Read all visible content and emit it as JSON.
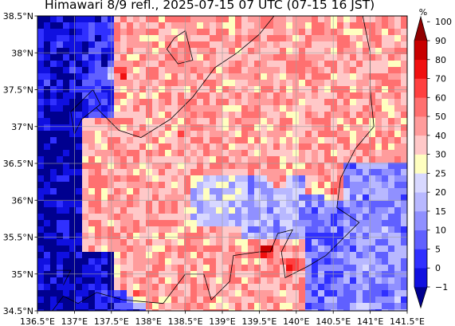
{
  "title": "Himawari 8/9 refl., 2025-07-15 07 UTC (07-15 16 JST)",
  "lon_ticks": [
    {
      "value": 136.5,
      "label": "136.5°E"
    },
    {
      "value": 137.0,
      "label": "137°E"
    },
    {
      "value": 137.5,
      "label": "137.5°E"
    },
    {
      "value": 138.0,
      "label": "138°E"
    },
    {
      "value": 138.5,
      "label": "138.5°E"
    },
    {
      "value": 139.0,
      "label": "139°E"
    },
    {
      "value": 139.5,
      "label": "139.5°E"
    },
    {
      "value": 140.0,
      "label": "140°E"
    },
    {
      "value": 140.5,
      "label": "140.5°E"
    },
    {
      "value": 141.0,
      "label": "141°E"
    },
    {
      "value": 141.5,
      "label": "141.5°E"
    }
  ],
  "lat_ticks": [
    {
      "value": 38.5,
      "label": "38.5°N"
    },
    {
      "value": 38.0,
      "label": "38°N"
    },
    {
      "value": 37.5,
      "label": "37.5°N"
    },
    {
      "value": 37.0,
      "label": "37°N"
    },
    {
      "value": 36.5,
      "label": "36.5°N"
    },
    {
      "value": 36.0,
      "label": "36°N"
    },
    {
      "value": 35.5,
      "label": "35.5°N"
    },
    {
      "value": 35.0,
      "label": "35°N"
    },
    {
      "value": 34.5,
      "label": "34.5°N"
    }
  ],
  "extent": {
    "lon_min": 136.5,
    "lon_max": 141.5,
    "lat_min": 34.5,
    "lat_max": 38.5
  },
  "colorbar": {
    "unit": "%",
    "levels": [
      -1,
      0,
      5,
      10,
      15,
      20,
      25,
      30,
      40,
      50,
      60,
      70,
      80,
      90,
      100
    ],
    "labels": [
      "−1",
      "0",
      "5",
      "10",
      "15",
      "20",
      "25",
      "30",
      "40",
      "50",
      "60",
      "70",
      "80",
      "90",
      "100"
    ],
    "colors": [
      "#00008f",
      "#1010e0",
      "#3030ff",
      "#6060ff",
      "#9090ff",
      "#b8b8ff",
      "#d8d8ff",
      "#ffffc0",
      "#ffc8c8",
      "#ff9c9c",
      "#ff7070",
      "#ff4040",
      "#f01010",
      "#c80000",
      "#900000"
    ]
  }
}
